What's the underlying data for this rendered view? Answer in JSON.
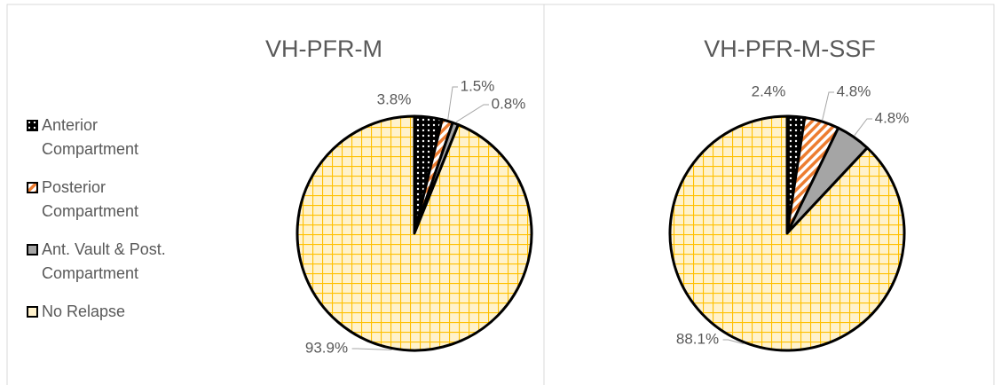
{
  "legend": {
    "labels": [
      "Anterior Compartment",
      "Posterior Compartment",
      "Ant. Vault & Post. Compartment",
      "No Relapse"
    ],
    "colors": [
      "#000000",
      "#ed7d31",
      "#a5a5a5",
      "#ffc000"
    ],
    "patterns": [
      "dots",
      "diagonal",
      "solid",
      "grid"
    ]
  },
  "chart_data": [
    {
      "type": "pie",
      "title": "VH-PFR-M",
      "values": [
        3.8,
        1.5,
        0.8,
        93.9
      ],
      "value_labels": [
        "3.8%",
        "1.5%",
        "0.8%",
        "93.9%"
      ]
    },
    {
      "type": "pie",
      "title": "VH-PFR-M-SSF",
      "values": [
        2.4,
        4.8,
        4.8,
        88.1
      ],
      "value_labels": [
        "2.4%",
        "4.8%",
        "4.8%",
        "88.1%"
      ]
    }
  ]
}
